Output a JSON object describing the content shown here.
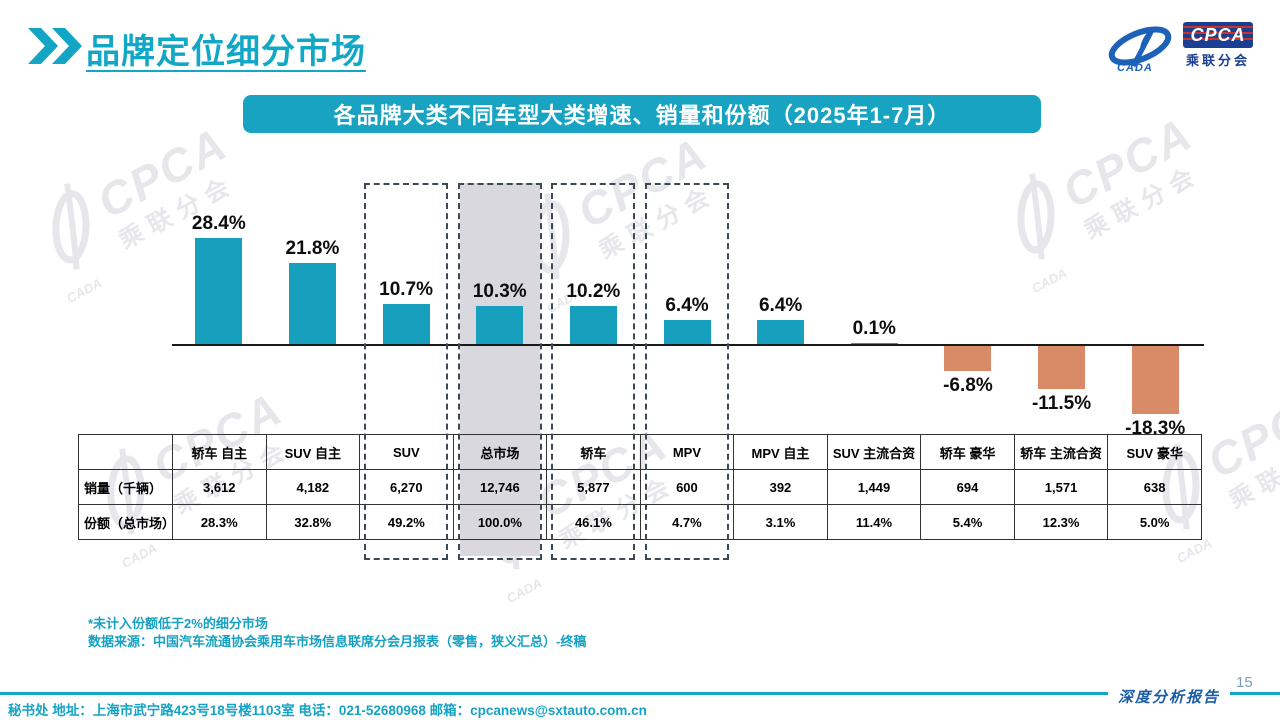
{
  "header": {
    "title": "品牌定位细分市场"
  },
  "logo": {
    "cada": "CADA",
    "cpca": "CPCA",
    "sub": "乘联分会"
  },
  "banner": {
    "title": "各品牌大类不同车型大类增速、销量和份额（2025年1-7月）"
  },
  "chart_data": {
    "type": "bar",
    "title": "各品牌大类不同车型大类增速、销量和份额（2025年1-7月）",
    "categories": [
      "轿车 自主",
      "SUV 自主",
      "SUV",
      "总市场",
      "轿车",
      "MPV",
      "MPV 自主",
      "SUV 主流合资",
      "轿车 豪华",
      "轿车 主流合资",
      "SUV 豪华"
    ],
    "series": [
      {
        "name": "增速（2025年1-7月）",
        "values": [
          28.4,
          21.8,
          10.7,
          10.3,
          10.2,
          6.4,
          6.4,
          0.1,
          -6.8,
          -11.5,
          -18.3
        ]
      }
    ],
    "value_labels": [
      "28.4%",
      "21.8%",
      "10.7%",
      "10.3%",
      "10.2%",
      "6.4%",
      "6.4%",
      "0.1%",
      "-6.8%",
      "-11.5%",
      "-18.3%"
    ],
    "dashed_highlight_indices": [
      2,
      3,
      4,
      5
    ],
    "filled_highlight_index": 3,
    "ylim": [
      -20,
      30
    ],
    "grid": false,
    "legend_position": "none",
    "bar_color_positive": "#17a0be",
    "bar_color_negative": "#d98a66"
  },
  "table": {
    "corner": "",
    "columns": [
      "轿车 自主",
      "SUV 自主",
      "SUV",
      "总市场",
      "轿车",
      "MPV",
      "MPV 自主",
      "SUV 主流合资",
      "轿车 豪华",
      "轿车 主流合资",
      "SUV 豪华"
    ],
    "rows": [
      {
        "label": "销量（千辆）",
        "values": [
          "3,612",
          "4,182",
          "6,270",
          "12,746",
          "5,877",
          "600",
          "392",
          "1,449",
          "694",
          "1,571",
          "638"
        ]
      },
      {
        "label": "份额（总市场）",
        "values": [
          "28.3%",
          "32.8%",
          "49.2%",
          "100.0%",
          "46.1%",
          "4.7%",
          "3.1%",
          "11.4%",
          "5.4%",
          "12.3%",
          "5.0%"
        ]
      }
    ]
  },
  "footnotes": {
    "line1": "*未计入份额低于2%的细分市场",
    "line2": "数据来源：中国汽车流通协会乘用车市场信息联席分会月报表（零售，狭义汇总）-终稿"
  },
  "footer": {
    "contact": "秘书处  地址：上海市武宁路423号18号楼1103室  电话：021-52680968   邮箱：cpcanews@sxtauto.com.cn",
    "report_tag": "深度分析报告",
    "page_number": "15"
  },
  "watermark": {
    "cpca": "CPCA",
    "sub": "乘联分会",
    "cada": "CADA"
  },
  "colors": {
    "accent_teal": "#17a3c1",
    "title_teal": "#11a7c6",
    "bar_positive": "#17a0be",
    "bar_negative": "#d98a66",
    "highlight_gray": "#d8d8de",
    "dashed_border": "#3d4855",
    "footer_blue": "#1a5ca5",
    "page_number_blue": "#7b9cb8"
  }
}
